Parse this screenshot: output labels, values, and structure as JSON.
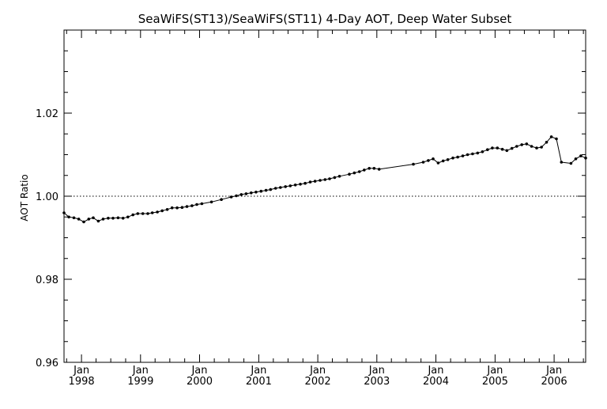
{
  "chart_data": {
    "type": "line",
    "title": "SeaWiFS(ST13)/SeaWiFS(ST11) 4-Day AOT, Deep Water Subset",
    "ylabel": "AOT Ratio",
    "xlabel": "",
    "ylim": [
      0.96,
      1.04
    ],
    "xlim": [
      "1997-09-15",
      "2006-07-15"
    ],
    "yticks": [
      "0.96",
      "0.98",
      "1.00",
      "1.02"
    ],
    "xticks": [
      {
        "month": "Jan",
        "year": "1998",
        "date": "1998-01-01"
      },
      {
        "month": "Jan",
        "year": "1999",
        "date": "1999-01-01"
      },
      {
        "month": "Jan",
        "year": "2000",
        "date": "2000-01-01"
      },
      {
        "month": "Jan",
        "year": "2001",
        "date": "2001-01-01"
      },
      {
        "month": "Jan",
        "year": "2002",
        "date": "2002-01-01"
      },
      {
        "month": "Jan",
        "year": "2003",
        "date": "2003-01-01"
      },
      {
        "month": "Jan",
        "year": "2004",
        "date": "2004-01-01"
      },
      {
        "month": "Jan",
        "year": "2005",
        "date": "2005-01-01"
      },
      {
        "month": "Jan",
        "year": "2006",
        "date": "2006-01-01"
      }
    ],
    "reference_line": {
      "y": 1.0,
      "style": "dotted"
    },
    "grid": false,
    "line_color": "#000000",
    "series": [
      {
        "x": [
          "1997-09-15",
          "1997-10-15",
          "1997-11-15",
          "1997-12-15",
          "1998-01-15",
          "1998-02-15",
          "1998-03-15",
          "1998-04-15",
          "1998-05-15",
          "1998-06-15",
          "1998-07-15",
          "1998-08-15",
          "1998-09-15",
          "1998-10-15",
          "1998-11-15",
          "1998-12-15",
          "1999-01-15",
          "1999-02-15",
          "1999-03-15",
          "1999-04-15",
          "1999-05-15",
          "1999-06-15",
          "1999-07-15",
          "1999-08-15",
          "1999-09-15",
          "1999-10-15",
          "1999-11-15",
          "1999-12-15",
          "2000-01-15",
          "2000-03-15",
          "2000-05-15",
          "2000-07-15",
          "2000-08-15",
          "2000-09-15",
          "2000-10-15",
          "2000-11-15",
          "2000-12-15",
          "2001-01-15",
          "2001-02-15",
          "2001-03-15",
          "2001-04-15",
          "2001-05-15",
          "2001-06-15",
          "2001-07-15",
          "2001-08-15",
          "2001-09-15",
          "2001-10-15",
          "2001-11-15",
          "2001-12-15",
          "2002-01-15",
          "2002-02-15",
          "2002-03-15",
          "2002-04-15",
          "2002-05-15",
          "2002-07-15",
          "2002-08-15",
          "2002-09-15",
          "2002-10-15",
          "2002-11-15",
          "2002-12-15",
          "2003-01-15",
          "2003-08-15",
          "2003-10-15",
          "2003-11-15",
          "2003-12-15",
          "2004-01-15",
          "2004-02-15",
          "2004-03-15",
          "2004-04-15",
          "2004-05-15",
          "2004-06-15",
          "2004-07-15",
          "2004-08-15",
          "2004-09-15",
          "2004-10-15",
          "2004-11-15",
          "2004-12-15",
          "2005-01-15",
          "2005-02-15",
          "2005-03-15",
          "2005-04-15",
          "2005-05-15",
          "2005-06-15",
          "2005-07-15",
          "2005-08-15",
          "2005-09-15",
          "2005-10-15",
          "2005-11-15",
          "2005-12-15",
          "2006-01-15",
          "2006-02-15",
          "2006-04-15",
          "2006-05-15",
          "2006-06-15",
          "2006-07-15"
        ],
        "y": [
          0.996,
          0.995,
          0.9948,
          0.9945,
          0.9938,
          0.9945,
          0.9948,
          0.994,
          0.9945,
          0.9947,
          0.9947,
          0.9948,
          0.9947,
          0.995,
          0.9955,
          0.9958,
          0.9958,
          0.9958,
          0.996,
          0.9962,
          0.9965,
          0.9968,
          0.9972,
          0.9972,
          0.9973,
          0.9975,
          0.9977,
          0.998,
          0.9982,
          0.9986,
          0.9992,
          0.9998,
          1.0001,
          1.0004,
          1.0006,
          1.0008,
          1.001,
          1.0012,
          1.0014,
          1.0016,
          1.0019,
          1.0021,
          1.0023,
          1.0025,
          1.0027,
          1.0029,
          1.0031,
          1.0034,
          1.0036,
          1.0038,
          1.004,
          1.0042,
          1.0045,
          1.0048,
          1.0053,
          1.0056,
          1.0059,
          1.0063,
          1.0067,
          1.0067,
          1.0065,
          1.0077,
          1.0082,
          1.0086,
          1.009,
          1.008,
          1.0085,
          1.0088,
          1.0092,
          1.0094,
          1.0097,
          1.01,
          1.0102,
          1.0104,
          1.0107,
          1.0112,
          1.0116,
          1.0116,
          1.0113,
          1.011,
          1.0115,
          1.012,
          1.0124,
          1.0126,
          1.012,
          1.0116,
          1.0118,
          1.013,
          1.0143,
          1.0138,
          1.0082,
          1.0079,
          1.009,
          1.0097,
          1.0092
        ]
      }
    ]
  }
}
